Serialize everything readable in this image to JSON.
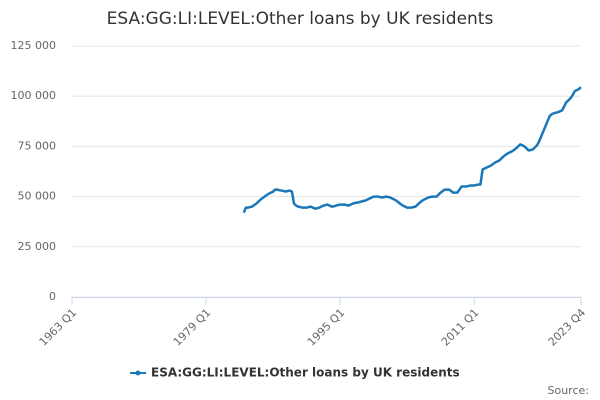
{
  "chart_data": {
    "type": "line",
    "title": "ESA:GG:LI:LEVEL:Other loans by UK residents",
    "source": "Source:",
    "categories": [
      "1963 Q1",
      null,
      null,
      null,
      null,
      null,
      null,
      null,
      null,
      null,
      null,
      null,
      null,
      null,
      null,
      null,
      null,
      null,
      null,
      null,
      null,
      null,
      null,
      null,
      null,
      null,
      null,
      null,
      null,
      null,
      null,
      null,
      null,
      null,
      null,
      null,
      null,
      null,
      null,
      null,
      null,
      null,
      null,
      null,
      null,
      null,
      null,
      null,
      null,
      null,
      null,
      null,
      null,
      null,
      null,
      null,
      null,
      null,
      null,
      null,
      null,
      null,
      null,
      null,
      "1979 Q1",
      null,
      null,
      null,
      null,
      null,
      null,
      null,
      null,
      null,
      null,
      null,
      null,
      null,
      null,
      null,
      null,
      null,
      null,
      null,
      null,
      null,
      null,
      null,
      null,
      null,
      null,
      null,
      null,
      null,
      null,
      null,
      null,
      null,
      null,
      null,
      null,
      null,
      null,
      null,
      null,
      null,
      null,
      null,
      null,
      null,
      null,
      null,
      null,
      null,
      null,
      null,
      null,
      null,
      null,
      null,
      null,
      null,
      null,
      null,
      null,
      null,
      null,
      null,
      "1995 Q1",
      null,
      null,
      null,
      null,
      null,
      null,
      null,
      null,
      null,
      null,
      null,
      null,
      null,
      null,
      null,
      null,
      null,
      null,
      null,
      null,
      null,
      null,
      null,
      null,
      null,
      null,
      null,
      null,
      null,
      null,
      null,
      null,
      null,
      null,
      null,
      null,
      null,
      null,
      null,
      null,
      null,
      null,
      null,
      null,
      null,
      null,
      null,
      null,
      null,
      null,
      null,
      null,
      null,
      null,
      null,
      null,
      null,
      null,
      null,
      null,
      null,
      null,
      null,
      "2011 Q1",
      null,
      null,
      null,
      null,
      null,
      null,
      null,
      null,
      null,
      null,
      null,
      null,
      null,
      null,
      null,
      null,
      null,
      null,
      null,
      null,
      null,
      null,
      null,
      null,
      null,
      null,
      null,
      null,
      null,
      null,
      null,
      null,
      null,
      null,
      null,
      null,
      null,
      null,
      null,
      null,
      null,
      null,
      null,
      null,
      null,
      null,
      null,
      null,
      null,
      null,
      "2023 Q4"
    ],
    "series": [
      {
        "name": "ESA:GG:LI:LEVEL:Other loans by UK residents",
        "color": "#1a78b8",
        "values": [
          null,
          null,
          null,
          null,
          null,
          null,
          null,
          null,
          null,
          null,
          null,
          null,
          null,
          null,
          null,
          null,
          null,
          null,
          null,
          null,
          null,
          null,
          null,
          null,
          null,
          null,
          null,
          null,
          null,
          null,
          null,
          null,
          null,
          null,
          null,
          null,
          null,
          null,
          null,
          null,
          null,
          null,
          null,
          null,
          null,
          null,
          null,
          null,
          null,
          null,
          null,
          null,
          null,
          null,
          null,
          null,
          null,
          null,
          null,
          null,
          null,
          null,
          null,
          null,
          null,
          null,
          null,
          null,
          null,
          null,
          null,
          null,
          null,
          null,
          null,
          null,
          null,
          null,
          null,
          null,
          null,
          null,
          42000,
          44500,
          44500,
          44800,
          45000,
          45800,
          46500,
          47500,
          48500,
          49300,
          50000,
          50800,
          51500,
          52000,
          52500,
          53500,
          53500,
          53200,
          53000,
          52800,
          52500,
          52800,
          53000,
          52500,
          46500,
          45500,
          45000,
          44800,
          44500,
          44500,
          44500,
          44800,
          45000,
          44500,
          44000,
          44200,
          44500,
          45000,
          45500,
          45800,
          46000,
          45500,
          45000,
          45200,
          45500,
          45800,
          46000,
          46000,
          46000,
          45800,
          45500,
          46000,
          46500,
          46800,
          47000,
          47200,
          47500,
          47800,
          48000,
          48500,
          49000,
          49500,
          50000,
          50000,
          50000,
          49800,
          49500,
          49800,
          50000,
          49800,
          49500,
          49000,
          48500,
          47800,
          47000,
          46200,
          45500,
          45000,
          44500,
          44500,
          44500,
          44800,
          45000,
          46000,
          47000,
          47800,
          48500,
          49000,
          49500,
          49800,
          50000,
          50000,
          50000,
          51000,
          52000,
          52800,
          53500,
          53500,
          53500,
          52800,
          52000,
          52000,
          52000,
          53500,
          55000,
          55000,
          55000,
          55200,
          55500,
          55500,
          55500,
          55800,
          56000,
          56000,
          63500,
          64000,
          64500,
          65000,
          65500,
          66200,
          67000,
          67500,
          68000,
          69000,
          70000,
          70800,
          71500,
          72000,
          72500,
          73200,
          74000,
          75000,
          76000,
          75500,
          75000,
          74000,
          73000,
          73200,
          73500,
          74500,
          75500,
          77500,
          80000,
          82500,
          85000,
          87500,
          90000,
          91000,
          91500,
          91800,
          92000,
          92500,
          93000,
          95000,
          97000,
          98000,
          99000,
          100500,
          102500,
          103000,
          103500,
          104500
        ]
      }
    ],
    "ylim": [
      0,
      125000
    ],
    "yticks": [
      0,
      {
        "value": 25000,
        "label": "25 000"
      },
      {
        "value": 50000,
        "label": "50 000"
      },
      {
        "value": 75000,
        "label": "75 000"
      },
      {
        "value": 100000,
        "label": "100 000"
      },
      {
        "value": 125000,
        "label": "125 000"
      }
    ],
    "grid": true
  }
}
